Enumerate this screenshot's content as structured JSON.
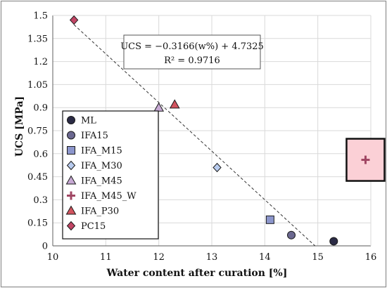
{
  "chart_data": {
    "type": "scatter",
    "xlabel": "Water content after curation [%]",
    "ylabel": "UCS [MPa]",
    "xlim": [
      10,
      16
    ],
    "ylim": [
      0,
      1.5
    ],
    "x_ticks": [
      "10",
      "11",
      "12",
      "13",
      "14",
      "15",
      "16"
    ],
    "y_ticks": [
      "0",
      "0.15",
      "0.3",
      "0.45",
      "0.6",
      "0.75",
      "0.9",
      "1.05",
      "1.2",
      "1.35",
      "1.5"
    ],
    "grid": "major",
    "legend_position": "left-middle",
    "series": [
      {
        "name": "ML",
        "marker": "circle",
        "color": "#2b2b45",
        "points": [
          {
            "x": 15.3,
            "y": 0.03
          }
        ]
      },
      {
        "name": "IFA15",
        "marker": "circle",
        "color": "#6b6890",
        "points": [
          {
            "x": 14.5,
            "y": 0.07
          }
        ]
      },
      {
        "name": "IFA_M15",
        "marker": "square",
        "color": "#8c96cc",
        "points": [
          {
            "x": 14.1,
            "y": 0.17
          }
        ]
      },
      {
        "name": "IFA_M30",
        "marker": "diamond",
        "color": "#b8cbee",
        "points": [
          {
            "x": 13.1,
            "y": 0.51
          }
        ]
      },
      {
        "name": "IFA_M45",
        "marker": "triangle",
        "color": "#c7a9d4",
        "points": [
          {
            "x": 12.0,
            "y": 0.9
          }
        ]
      },
      {
        "name": "IFA_M45_W",
        "marker": "plus",
        "color": "#a04663",
        "points": [
          {
            "x": 15.9,
            "y": 0.56
          }
        ]
      },
      {
        "name": "IFA_P30",
        "marker": "triangle",
        "color": "#d2545f",
        "points": [
          {
            "x": 12.3,
            "y": 0.92
          }
        ]
      },
      {
        "name": "PC15",
        "marker": "diamond",
        "color": "#c24565",
        "points": [
          {
            "x": 10.4,
            "y": 1.47
          }
        ]
      }
    ],
    "trendline": {
      "slope": -0.3166,
      "intercept": 4.7325,
      "x_start": 10.4,
      "style": "dashed",
      "color": "#333333"
    },
    "annotations": {
      "equation": "UCS = −0.3166(w%) + 4.7325",
      "r_squared": "R² = 0.9716"
    },
    "highlight_box": {
      "around_series": "IFA_M45_W",
      "fill": "#fbd0d6",
      "stroke": "#111111"
    }
  }
}
